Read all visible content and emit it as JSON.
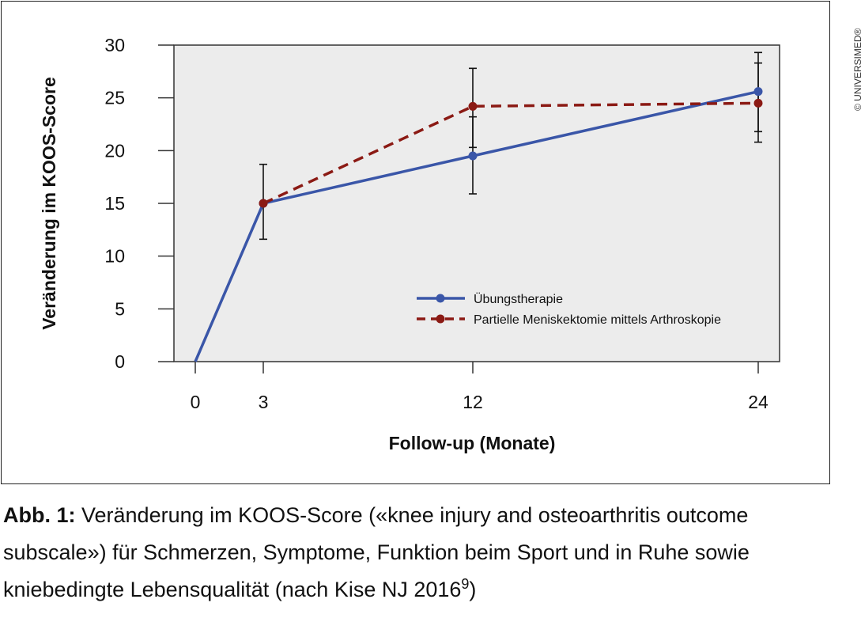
{
  "copyright": "© UNIVERSIMED®",
  "caption": {
    "label": "Abb. 1:",
    "text": " Veränderung im KOOS-Score («knee injury and osteoarthritis outcome subscale») für Schmerzen, Symptome, Funktion beim Sport und in Ruhe sowie kniebedingte Lebensqualität (nach Kise NJ 2016",
    "ref": "9",
    "end": ")"
  },
  "chart_data": {
    "type": "line",
    "title": "",
    "xlabel": "Follow-up (Monate)",
    "ylabel": "Veränderung im KOOS-Score",
    "xticks": [
      0,
      3,
      12,
      24
    ],
    "yticks": [
      0,
      5,
      10,
      15,
      20,
      25,
      30
    ],
    "ylim": [
      0,
      30
    ],
    "legend_position": "lower-right inside",
    "grid": false,
    "plot_background": "#ececec",
    "series": [
      {
        "name": "Übungstherapie",
        "color": "#3a56a8",
        "dash": "solid",
        "x": [
          0,
          3,
          12,
          24
        ],
        "y": [
          0,
          15,
          19.5,
          25.6
        ],
        "error": [
          null,
          [
            11.6,
            18.7
          ],
          [
            15.9,
            23.2
          ],
          [
            21.8,
            28.3
          ]
        ]
      },
      {
        "name": "Partielle Meniskektomie mittels Arthroskopie",
        "color": "#8b1a14",
        "dash": "dashed",
        "x": [
          3,
          12,
          24
        ],
        "y": [
          15,
          24.2,
          24.5
        ],
        "error": [
          null,
          [
            20.3,
            27.8
          ],
          [
            20.8,
            29.3
          ]
        ]
      }
    ]
  }
}
